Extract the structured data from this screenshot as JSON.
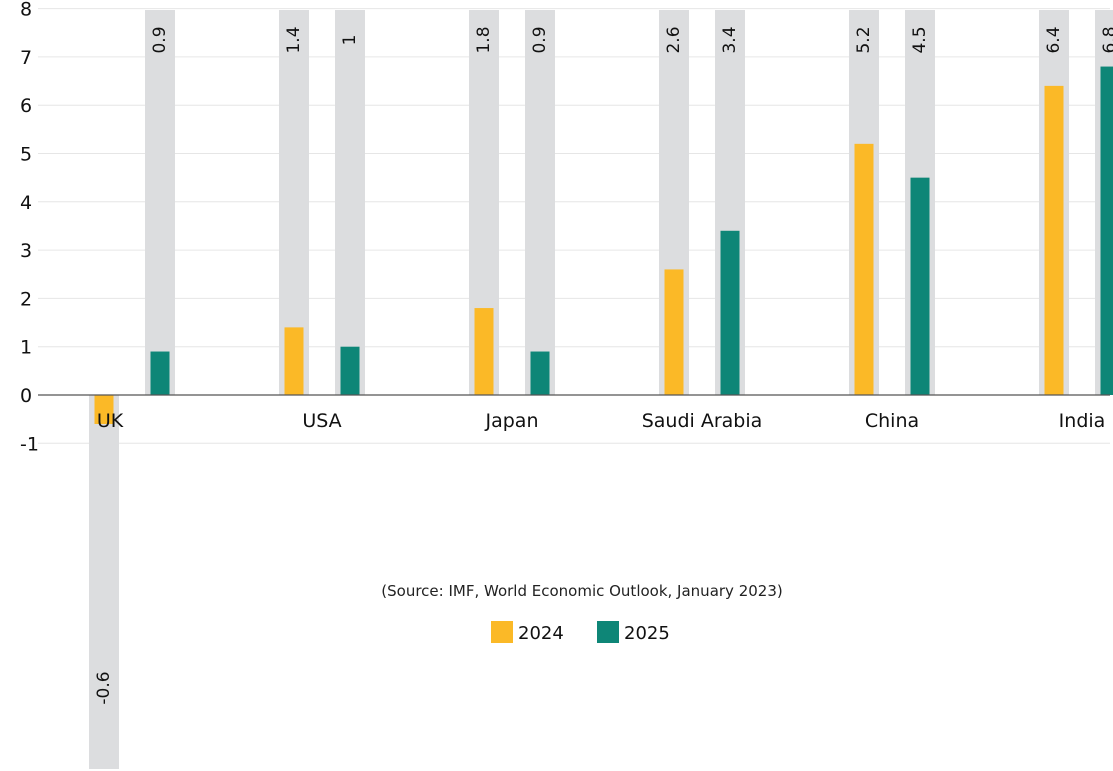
{
  "chart_data": {
    "type": "bar",
    "categories": [
      "UK",
      "USA",
      "Japan",
      "Saudi Arabia",
      "China",
      "India"
    ],
    "series": [
      {
        "name": "2024",
        "values": [
          -0.6,
          1.4,
          1.8,
          2.6,
          5.2,
          6.4
        ],
        "labels": [
          "-0.6",
          "1.4",
          "1.8",
          "2.6",
          "5.2",
          "6.4"
        ]
      },
      {
        "name": "2025",
        "values": [
          0.9,
          1,
          0.9,
          3.4,
          4.5,
          6.8
        ],
        "labels": [
          "0.9",
          "1",
          "0.9",
          "3.4",
          "4.5",
          "6.8"
        ]
      }
    ],
    "yticks": [
      "8",
      "7",
      "6",
      "5",
      "4",
      "3",
      "2",
      "1",
      "0",
      "-1"
    ],
    "ylim": [
      -1,
      8
    ],
    "grid": true,
    "legend_position": "bottom-center",
    "source": "(Source: IMF, World Economic Outlook, January 2023)"
  },
  "colors": {
    "series_2024": "#FBB927",
    "series_2025": "#0E8677",
    "track": "#DCDDDF",
    "grid": "#E6E6E6",
    "axis": "#555555"
  }
}
